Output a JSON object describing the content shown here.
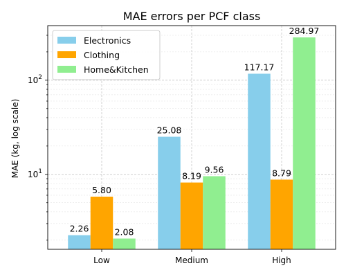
{
  "chart_data": {
    "type": "bar",
    "title": "MAE errors per PCF class",
    "xlabel": "",
    "ylabel": "MAE (kg, log scale)",
    "yscale": "log",
    "ylim": [
      1.6,
      380
    ],
    "y_ticks": [
      10,
      100
    ],
    "y_tick_labels": [
      "10^1",
      "10^2"
    ],
    "categories": [
      "Low",
      "Medium",
      "High"
    ],
    "series": [
      {
        "name": "Electronics",
        "color": "#87ceeb",
        "values": [
          2.26,
          25.08,
          117.17
        ],
        "labels": [
          "2.26",
          "25.08",
          "117.17"
        ]
      },
      {
        "name": "Clothing",
        "color": "#ffa500",
        "values": [
          5.8,
          8.19,
          8.79
        ],
        "labels": [
          "5.80",
          "8.19",
          "8.79"
        ]
      },
      {
        "name": "Home&Kitchen",
        "color": "#90ee90",
        "values": [
          2.08,
          9.56,
          284.97
        ],
        "labels": [
          "2.08",
          "9.56",
          "284.97"
        ]
      }
    ],
    "grid": true,
    "legend_position": "top-left"
  }
}
